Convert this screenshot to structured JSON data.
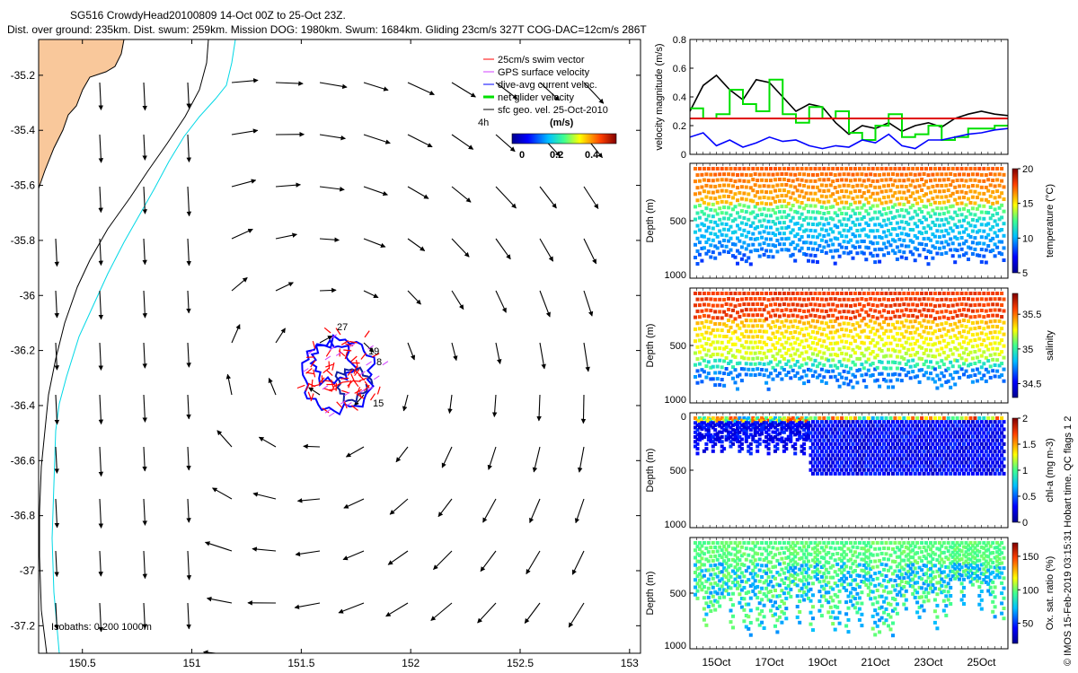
{
  "header": {
    "line1": "SG516 CrowdyHead20100809 14-Oct 00Z to 25-Oct 23Z.",
    "line2": "Dist. over ground: 235km. Dist. swum: 259km. Mission DOG: 1980km. Swum: 1684km. Gliding 23cm/s 327T COG-DAC=12cm/s 286T"
  },
  "colors": {
    "land": "#f9c89b",
    "coast": "#000000",
    "isobath_200": "#00d8e6",
    "swim": "#ff0000",
    "gps": "#d040ff",
    "dac": "#0000ff",
    "net": "#00e000",
    "arrow": "#000000",
    "threshold": "#e00000"
  },
  "map": {
    "xticks": [
      "150.5",
      "151",
      "151.5",
      "152",
      "152.5",
      "153"
    ],
    "yticks": [
      "-35.2",
      "-35.4",
      "-35.6",
      "-35.8",
      "-36",
      "-36.2",
      "-36.4",
      "-36.6",
      "-36.8",
      "-37",
      "-37.2"
    ],
    "xlim": [
      150.3,
      153.05
    ],
    "ylim": [
      -37.3,
      -35.07
    ],
    "isobath_label": "Isobaths: 0   200  1000m",
    "legend": [
      {
        "label": "25cm/s swim vector",
        "color": "#ff0000"
      },
      {
        "label": "GPS surface velocity",
        "color": "#d040ff"
      },
      {
        "label": "dive-avg current veloc.",
        "color": "#0000ff"
      },
      {
        "label": "net glider velocity",
        "color": "#00e000"
      },
      {
        "label": "sfc geo. vel. 25-Oct-2010",
        "color": "#000000"
      }
    ],
    "scale_label": "4h",
    "colorbar_label": "(m/s)",
    "colorbar_ticks": [
      "0",
      "0.2",
      "0.4"
    ],
    "dive_labels": [
      "27",
      "19",
      "8",
      "15"
    ]
  },
  "chart_data": [
    {
      "type": "line",
      "title": "",
      "xlabel": "",
      "ylabel": "velocity magnitude (m/s)",
      "ylim": [
        0,
        0.8
      ],
      "yticks": [
        "0",
        "0.2",
        "0.4",
        "0.6",
        "0.8"
      ],
      "threshold": 0.25,
      "x": [
        14,
        14.5,
        15,
        15.5,
        16,
        16.5,
        17,
        17.5,
        18,
        18.5,
        19,
        19.5,
        20,
        20.5,
        21,
        21.5,
        22,
        22.5,
        23,
        23.5,
        24,
        24.5,
        25,
        25.5,
        26
      ],
      "series": [
        {
          "name": "black",
          "color": "#000000",
          "values": [
            0.3,
            0.48,
            0.55,
            0.45,
            0.38,
            0.52,
            0.5,
            0.4,
            0.3,
            0.35,
            0.33,
            0.22,
            0.14,
            0.2,
            0.18,
            0.22,
            0.16,
            0.2,
            0.22,
            0.19,
            0.25,
            0.28,
            0.3,
            0.28,
            0.27
          ]
        },
        {
          "name": "green",
          "color": "#00e000",
          "values": [
            0.32,
            0.25,
            0.28,
            0.45,
            0.35,
            0.3,
            0.52,
            0.28,
            0.22,
            0.33,
            0.25,
            0.3,
            0.15,
            0.1,
            0.2,
            0.28,
            0.12,
            0.14,
            0.2,
            0.1,
            0.12,
            0.18,
            0.18,
            0.2,
            0.2
          ]
        },
        {
          "name": "blue",
          "color": "#0000ff",
          "values": [
            0.12,
            0.15,
            0.06,
            0.1,
            0.05,
            0.08,
            0.12,
            0.09,
            0.1,
            0.06,
            0.04,
            0.06,
            0.05,
            0.1,
            0.08,
            0.14,
            0.06,
            0.04,
            0.1,
            0.1,
            0.12,
            0.14,
            0.15,
            0.17,
            0.18
          ]
        }
      ]
    },
    {
      "type": "heatmap",
      "ylabel": "Depth (m)",
      "colorbar_label": "temperature (°C)",
      "colorbar_ticks": [
        "20",
        "15",
        "10",
        "5"
      ],
      "depth_ticks": [
        "500",
        "1000"
      ],
      "range": [
        5,
        20
      ]
    },
    {
      "type": "heatmap",
      "ylabel": "Depth (m)",
      "colorbar_label": "salinity",
      "colorbar_ticks": [
        "35.5",
        "35",
        "34.5"
      ],
      "depth_ticks": [
        "500",
        "1000"
      ],
      "range": [
        34.3,
        35.8
      ]
    },
    {
      "type": "heatmap",
      "ylabel": "Depth (m)",
      "colorbar_label": "chl-a (mg m-3)",
      "colorbar_ticks": [
        "2",
        "1.5",
        "1",
        "0.5",
        "0"
      ],
      "depth_ticks": [
        "0",
        "500",
        "1000"
      ],
      "range": [
        0,
        2
      ]
    },
    {
      "type": "heatmap",
      "ylabel": "Depth (m)",
      "colorbar_label": "Ox. sat. ratio (%)",
      "colorbar_ticks": [
        "150",
        "100",
        "50"
      ],
      "depth_ticks": [
        "500",
        "1000"
      ],
      "xticks": [
        "15Oct",
        "17Oct",
        "19Oct",
        "21Oct",
        "23Oct",
        "25Oct"
      ],
      "range": [
        20,
        170
      ]
    }
  ],
  "side_note": "© IMOS 15-Feb-2019 03:15:31 Hobart time. QC flags 1  2"
}
